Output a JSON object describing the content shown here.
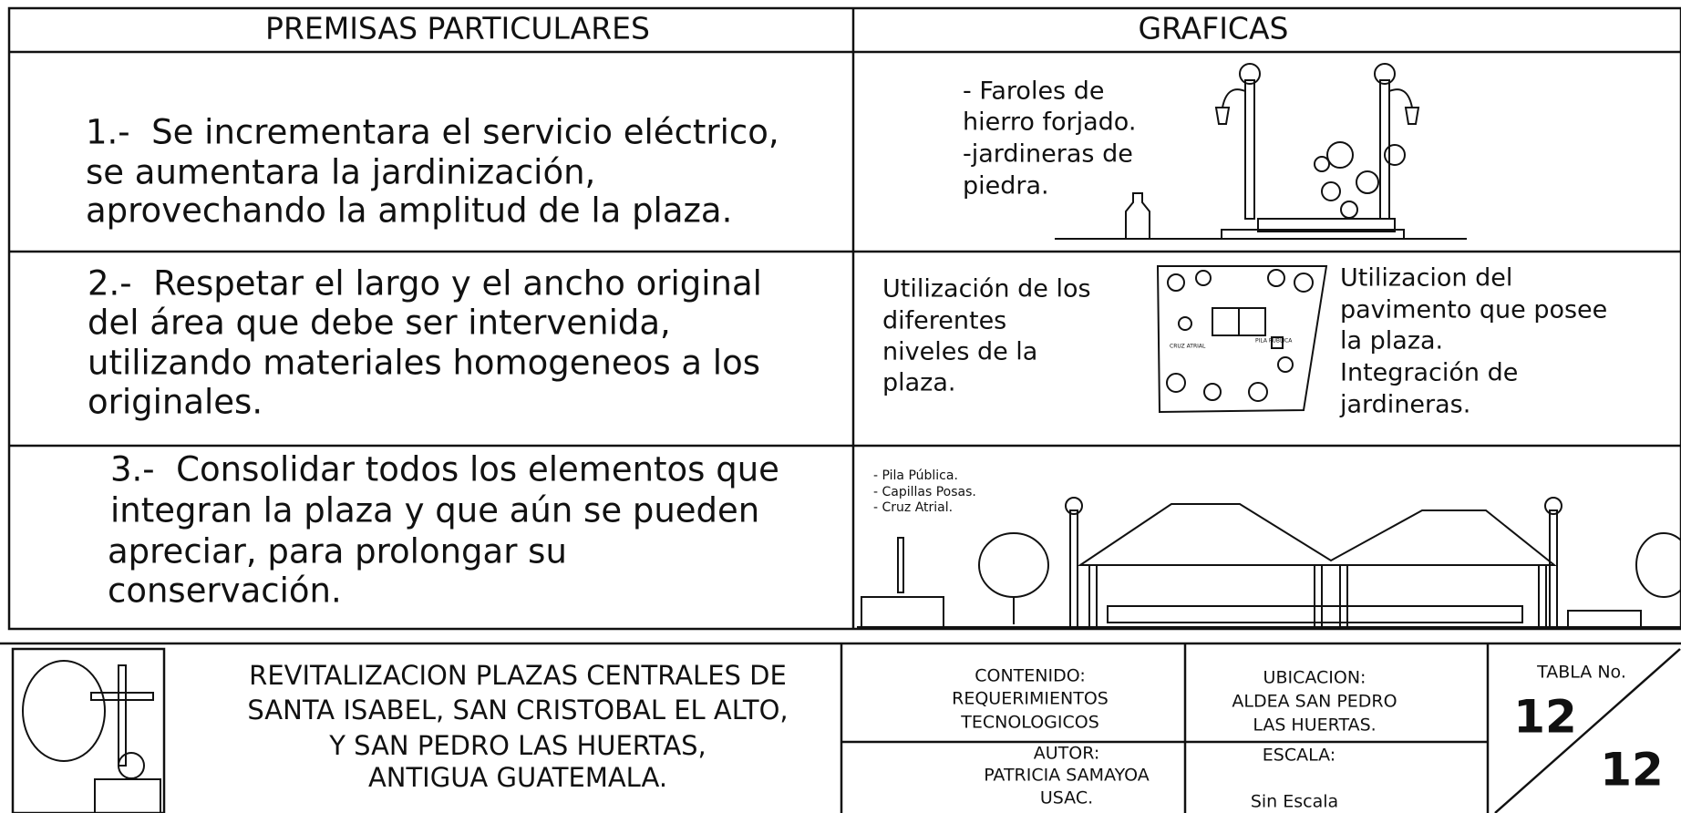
{
  "table": {
    "headers": [
      "PREMISAS PARTICULARES",
      "GRAFICAS"
    ],
    "rows": [
      {
        "premise": [
          "1.-  Se incrementara el servicio eléctrico,",
          "se aumentara la jardinización,",
          "aprovechando la amplitud de la plaza."
        ],
        "notes": [
          "- Faroles de",
          "hierro forjado.",
          "-jardineras de",
          "piedra."
        ]
      },
      {
        "premise": [
          "2.-  Respetar el largo y el ancho original",
          "del área que debe ser intervenida,",
          "utilizando materiales homogeneos a los",
          "originales."
        ],
        "notes_left": [
          "Utilización de los",
          "diferentes",
          "niveles de la",
          "plaza."
        ],
        "plan_labels": [
          "PILA PUBLICA",
          "CRUZ ATRIAL"
        ],
        "notes_right": [
          "Utilizacion del",
          "pavimento que posee",
          "la plaza.",
          "Integración de",
          "jardineras."
        ]
      },
      {
        "premise": [
          "3.-  Consolidar todos los elementos que",
          "integran la plaza y que aún se pueden",
          "apreciar, para prolongar su",
          "conservación."
        ],
        "notes": [
          "- Pila Pública.",
          "- Capillas Posas.",
          "- Cruz Atrial."
        ]
      }
    ]
  },
  "title_block": {
    "title": [
      "REVITALIZACION PLAZAS CENTRALES DE",
      "SANTA ISABEL, SAN CRISTOBAL EL ALTO,",
      "Y SAN PEDRO LAS HUERTAS,",
      "ANTIGUA GUATEMALA."
    ],
    "contenido": [
      "CONTENIDO:",
      "REQUERIMIENTOS",
      "TECNOLOGICOS"
    ],
    "ubicacion": [
      "UBICACION:",
      "ALDEA SAN PEDRO",
      "LAS HUERTAS."
    ],
    "autor": [
      "AUTOR:",
      "PATRICIA SAMAYOA",
      "USAC."
    ],
    "escala": [
      "ESCALA:",
      "Sin Escala"
    ],
    "tabla": {
      "label": "TABLA No.",
      "number": "12",
      "total": "12"
    }
  }
}
